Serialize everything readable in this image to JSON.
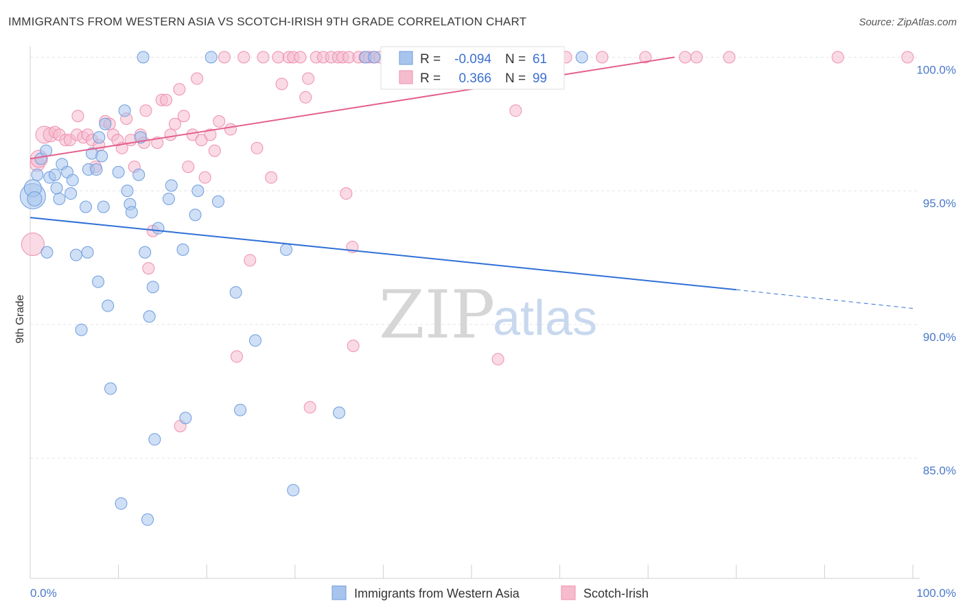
{
  "title": "IMMIGRANTS FROM WESTERN ASIA VS SCOTCH-IRISH 9TH GRADE CORRELATION CHART",
  "source": "Source: ZipAtlas.com",
  "watermark": {
    "zip": "ZIP",
    "atlas": "atlas"
  },
  "colors": {
    "blue_fill": "#a8c4ec",
    "blue_stroke": "#6c9ce0",
    "blue_line": "#2f6fd6",
    "pink_fill": "#f6bccd",
    "pink_stroke": "#ee8fae",
    "pink_line": "#e4608c",
    "grid": "#e3e3e3",
    "tick_text": "#4a78c8"
  },
  "legend_box": {
    "rows": [
      {
        "r_label": "R =",
        "r_value": "-0.094",
        "n_label": "N =",
        "n_value": "61"
      },
      {
        "r_label": "R =",
        "r_value": "0.366",
        "n_label": "N =",
        "n_value": "99"
      }
    ]
  },
  "bottom_legend": [
    "Immigrants from Western Asia",
    "Scotch-Irish"
  ],
  "chart_data": {
    "type": "scatter",
    "xlabel": "",
    "ylabel": "9th Grade",
    "xlim": [
      0,
      100
    ],
    "ylim": [
      80.5,
      100.6
    ],
    "x_tick_labels": [
      "0.0%",
      "100.0%"
    ],
    "y_ticks": [
      85,
      90,
      95,
      100
    ],
    "y_tick_labels": [
      "85.0%",
      "90.0%",
      "95.0%",
      "100.0%"
    ],
    "grid": true,
    "series": [
      {
        "name": "Immigrants from Western Asia",
        "trend": {
          "x0": 0,
          "y0": 94.0,
          "x1": 80,
          "y1": 91.3,
          "dash_to": 100,
          "dash_y": 90.6
        },
        "points": [
          [
            0.3,
            94.8,
            18
          ],
          [
            0.3,
            95.1,
            12
          ],
          [
            0.5,
            94.7,
            10
          ],
          [
            0.8,
            95.6,
            8
          ],
          [
            1.2,
            96.2,
            8
          ],
          [
            1.8,
            96.5,
            8
          ],
          [
            2.2,
            95.5,
            8
          ],
          [
            2.8,
            95.6,
            8
          ],
          [
            3.0,
            95.1,
            8
          ],
          [
            3.3,
            94.7,
            8
          ],
          [
            3.6,
            96.0,
            8
          ],
          [
            4.2,
            95.7,
            8
          ],
          [
            4.6,
            94.9,
            8
          ],
          [
            4.8,
            95.4,
            8
          ],
          [
            6.3,
            94.4,
            8
          ],
          [
            6.6,
            95.8,
            8
          ],
          [
            7.0,
            96.4,
            8
          ],
          [
            7.5,
            95.8,
            8
          ],
          [
            7.8,
            97.0,
            8
          ],
          [
            8.1,
            96.3,
            8
          ],
          [
            8.3,
            94.4,
            8
          ],
          [
            8.5,
            97.5,
            8
          ],
          [
            10.0,
            95.7,
            8
          ],
          [
            10.7,
            98.0,
            8
          ],
          [
            11.0,
            95.0,
            8
          ],
          [
            11.3,
            94.5,
            8
          ],
          [
            11.5,
            94.2,
            8
          ],
          [
            12.3,
            95.6,
            8
          ],
          [
            12.5,
            97.0,
            8
          ],
          [
            12.8,
            100.0,
            8
          ],
          [
            14.5,
            93.6,
            8
          ],
          [
            15.7,
            94.7,
            8
          ],
          [
            16.0,
            95.2,
            8
          ],
          [
            18.7,
            94.1,
            8
          ],
          [
            19.0,
            95.0,
            8
          ],
          [
            20.5,
            100.0,
            8
          ],
          [
            21.3,
            94.6,
            8
          ],
          [
            1.9,
            92.7,
            8
          ],
          [
            5.2,
            92.6,
            8
          ],
          [
            6.5,
            92.7,
            8
          ],
          [
            13.0,
            92.7,
            8
          ],
          [
            17.3,
            92.8,
            8
          ],
          [
            29.0,
            92.8,
            8
          ],
          [
            7.7,
            91.6,
            8
          ],
          [
            13.9,
            91.4,
            8
          ],
          [
            23.3,
            91.2,
            8
          ],
          [
            8.8,
            90.7,
            8
          ],
          [
            13.5,
            90.3,
            8
          ],
          [
            5.8,
            89.8,
            8
          ],
          [
            25.5,
            89.4,
            8
          ],
          [
            9.1,
            87.6,
            8
          ],
          [
            17.6,
            86.5,
            8
          ],
          [
            23.8,
            86.8,
            8
          ],
          [
            35.0,
            86.7,
            8
          ],
          [
            14.1,
            85.7,
            8
          ],
          [
            10.3,
            83.3,
            8
          ],
          [
            29.8,
            83.8,
            8
          ],
          [
            13.3,
            82.7,
            8
          ],
          [
            38.0,
            100.0,
            8
          ],
          [
            39.0,
            100.0,
            8
          ],
          [
            62.5,
            100.0,
            8
          ]
        ]
      },
      {
        "name": "Scotch-Irish",
        "trend": {
          "x0": 0,
          "y0": 96.2,
          "x1": 73,
          "y1": 100.0
        },
        "points": [
          [
            0.3,
            93.0,
            16
          ],
          [
            0.8,
            96.0,
            10
          ],
          [
            1.0,
            96.2,
            12
          ],
          [
            1.6,
            97.1,
            12
          ],
          [
            2.3,
            97.1,
            10
          ],
          [
            2.8,
            97.2,
            8
          ],
          [
            3.3,
            97.1,
            8
          ],
          [
            4.0,
            96.9,
            8
          ],
          [
            4.5,
            96.9,
            8
          ],
          [
            5.3,
            97.1,
            8
          ],
          [
            5.4,
            97.8,
            8
          ],
          [
            6.0,
            97.0,
            8
          ],
          [
            6.5,
            97.1,
            8
          ],
          [
            7.0,
            96.9,
            8
          ],
          [
            7.4,
            95.9,
            8
          ],
          [
            7.8,
            96.7,
            8
          ],
          [
            8.5,
            97.6,
            8
          ],
          [
            9.0,
            97.5,
            8
          ],
          [
            9.4,
            97.1,
            8
          ],
          [
            9.9,
            96.9,
            8
          ],
          [
            10.4,
            96.6,
            8
          ],
          [
            10.9,
            97.7,
            8
          ],
          [
            11.4,
            96.9,
            8
          ],
          [
            11.8,
            95.9,
            8
          ],
          [
            12.5,
            97.1,
            8
          ],
          [
            12.9,
            96.8,
            8
          ],
          [
            13.1,
            98.0,
            8
          ],
          [
            13.4,
            92.1,
            8
          ],
          [
            13.9,
            93.5,
            8
          ],
          [
            14.4,
            96.8,
            8
          ],
          [
            14.9,
            98.4,
            8
          ],
          [
            15.4,
            98.4,
            8
          ],
          [
            15.9,
            97.1,
            8
          ],
          [
            16.4,
            97.5,
            8
          ],
          [
            16.9,
            98.8,
            8
          ],
          [
            17.4,
            97.8,
            8
          ],
          [
            17.9,
            95.9,
            8
          ],
          [
            18.4,
            97.1,
            8
          ],
          [
            18.9,
            99.2,
            8
          ],
          [
            19.4,
            96.9,
            8
          ],
          [
            19.8,
            95.5,
            8
          ],
          [
            20.4,
            97.1,
            8
          ],
          [
            20.9,
            96.5,
            8
          ],
          [
            21.4,
            97.6,
            8
          ],
          [
            22.0,
            100.0,
            8
          ],
          [
            22.7,
            97.3,
            8
          ],
          [
            23.4,
            88.8,
            8
          ],
          [
            24.2,
            100.0,
            8
          ],
          [
            24.9,
            92.4,
            8
          ],
          [
            25.7,
            96.6,
            8
          ],
          [
            26.4,
            100.0,
            8
          ],
          [
            27.3,
            95.5,
            8
          ],
          [
            28.1,
            100.0,
            8
          ],
          [
            28.5,
            99.0,
            8
          ],
          [
            29.3,
            100.0,
            8
          ],
          [
            29.8,
            100.0,
            8
          ],
          [
            30.6,
            100.0,
            8
          ],
          [
            31.2,
            98.5,
            8
          ],
          [
            31.5,
            99.2,
            8
          ],
          [
            31.7,
            86.9,
            8
          ],
          [
            32.4,
            100.0,
            8
          ],
          [
            33.2,
            100.0,
            8
          ],
          [
            34.1,
            100.0,
            8
          ],
          [
            34.9,
            100.0,
            8
          ],
          [
            35.4,
            100.0,
            8
          ],
          [
            35.8,
            94.9,
            8
          ],
          [
            36.1,
            100.0,
            8
          ],
          [
            36.5,
            92.9,
            8
          ],
          [
            36.6,
            89.2,
            8
          ],
          [
            37.2,
            100.0,
            8
          ],
          [
            37.9,
            100.0,
            8
          ],
          [
            38.4,
            100.0,
            8
          ],
          [
            38.9,
            100.0,
            8
          ],
          [
            39.6,
            100.0,
            8
          ],
          [
            40.5,
            100.0,
            8
          ],
          [
            41.4,
            100.0,
            8
          ],
          [
            42.4,
            100.0,
            8
          ],
          [
            43.6,
            100.0,
            8
          ],
          [
            44.7,
            100.0,
            8
          ],
          [
            45.8,
            100.0,
            8
          ],
          [
            46.9,
            100.0,
            8
          ],
          [
            48.1,
            100.0,
            8
          ],
          [
            49.2,
            100.0,
            8
          ],
          [
            50.4,
            100.0,
            8
          ],
          [
            52.3,
            100.0,
            8
          ],
          [
            53.0,
            88.7,
            8
          ],
          [
            54.2,
            100.0,
            8
          ],
          [
            55.0,
            98.0,
            8
          ],
          [
            56.5,
            100.0,
            8
          ],
          [
            58.0,
            100.0,
            8
          ],
          [
            60.7,
            100.0,
            8
          ],
          [
            64.8,
            100.0,
            8
          ],
          [
            69.7,
            100.0,
            8
          ],
          [
            74.2,
            100.0,
            8
          ],
          [
            75.5,
            100.0,
            8
          ],
          [
            79.2,
            100.0,
            8
          ],
          [
            91.5,
            100.0,
            8
          ],
          [
            99.4,
            100.0,
            8
          ],
          [
            17.0,
            86.2,
            8
          ]
        ]
      }
    ]
  }
}
